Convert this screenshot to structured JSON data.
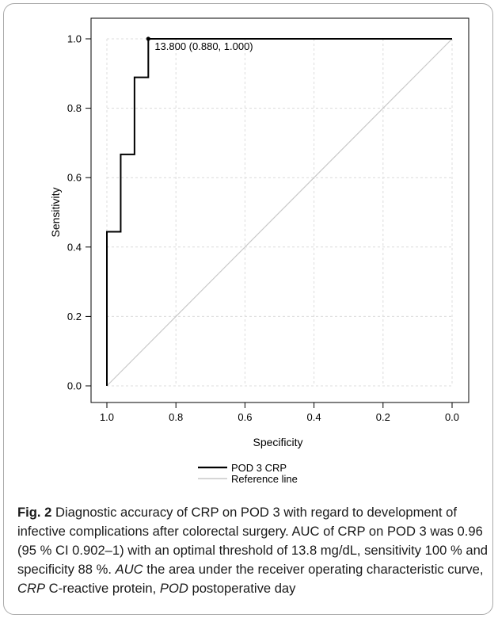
{
  "chart_data": {
    "type": "line",
    "title": "",
    "xlabel": "Specificity",
    "ylabel": "Sensitivity",
    "xlim": [
      1.0,
      0.0
    ],
    "ylim": [
      0.0,
      1.0
    ],
    "x_reversed": true,
    "grid": true,
    "x_ticks": [
      "1.0",
      "0.8",
      "0.6",
      "0.4",
      "0.2",
      "0.0"
    ],
    "y_ticks": [
      "0.0",
      "0.2",
      "0.4",
      "0.6",
      "0.8",
      "1.0"
    ],
    "series": [
      {
        "name": "POD 3 CRP",
        "color": "#000000",
        "step": true,
        "points": [
          {
            "specificity": 1.0,
            "sensitivity": 0.0
          },
          {
            "specificity": 1.0,
            "sensitivity": 0.444
          },
          {
            "specificity": 0.96,
            "sensitivity": 0.444
          },
          {
            "specificity": 0.96,
            "sensitivity": 0.667
          },
          {
            "specificity": 0.92,
            "sensitivity": 0.667
          },
          {
            "specificity": 0.92,
            "sensitivity": 0.889
          },
          {
            "specificity": 0.88,
            "sensitivity": 0.889
          },
          {
            "specificity": 0.88,
            "sensitivity": 1.0
          },
          {
            "specificity": 0.0,
            "sensitivity": 1.0
          }
        ]
      },
      {
        "name": "Reference line",
        "color": "#c8c8c8",
        "points": [
          {
            "specificity": 1.0,
            "sensitivity": 0.0
          },
          {
            "specificity": 0.0,
            "sensitivity": 1.0
          }
        ]
      }
    ],
    "annotation": {
      "text": "13.800 (0.880, 1.000)",
      "specificity": 0.88,
      "sensitivity": 1.0
    },
    "legend_position": "bottom-center"
  },
  "caption": {
    "label": "Fig. 2",
    "p1": "Diagnostic accuracy of CRP on POD 3 with regard to development of infective complications after colorectal surgery. AUC of CRP on POD 3 was 0.96 (95 % CI 0.902–1) with an optimal threshold of 13.8 mg/dL, sensitivity 100 % and specificity 88 %.",
    "abbr1": "AUC",
    "def1": "the area under the receiver operating characteristic curve,",
    "abbr2": "CRP",
    "def2": "C-reactive protein,",
    "abbr3": "POD",
    "def3": "postoperative day"
  }
}
